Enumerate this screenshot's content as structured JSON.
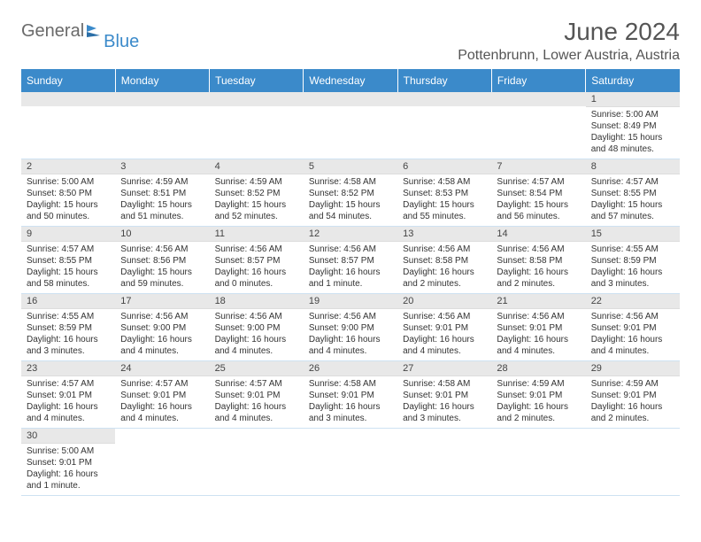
{
  "header": {
    "logo_general": "General",
    "logo_blue": "Blue",
    "month_title": "June 2024",
    "location": "Pottenbrunn, Lower Austria, Austria"
  },
  "colors": {
    "header_bg": "#3b8aca",
    "daynum_bg": "#e8e8e8",
    "text": "#333333",
    "logo_gray": "#6a6a6a"
  },
  "weekdays": [
    "Sunday",
    "Monday",
    "Tuesday",
    "Wednesday",
    "Thursday",
    "Friday",
    "Saturday"
  ],
  "grid": {
    "first_day_index": 6,
    "days_in_month": 30
  },
  "days": {
    "1": {
      "sunrise": "5:00 AM",
      "sunset": "8:49 PM",
      "daylight": "15 hours and 48 minutes."
    },
    "2": {
      "sunrise": "5:00 AM",
      "sunset": "8:50 PM",
      "daylight": "15 hours and 50 minutes."
    },
    "3": {
      "sunrise": "4:59 AM",
      "sunset": "8:51 PM",
      "daylight": "15 hours and 51 minutes."
    },
    "4": {
      "sunrise": "4:59 AM",
      "sunset": "8:52 PM",
      "daylight": "15 hours and 52 minutes."
    },
    "5": {
      "sunrise": "4:58 AM",
      "sunset": "8:52 PM",
      "daylight": "15 hours and 54 minutes."
    },
    "6": {
      "sunrise": "4:58 AM",
      "sunset": "8:53 PM",
      "daylight": "15 hours and 55 minutes."
    },
    "7": {
      "sunrise": "4:57 AM",
      "sunset": "8:54 PM",
      "daylight": "15 hours and 56 minutes."
    },
    "8": {
      "sunrise": "4:57 AM",
      "sunset": "8:55 PM",
      "daylight": "15 hours and 57 minutes."
    },
    "9": {
      "sunrise": "4:57 AM",
      "sunset": "8:55 PM",
      "daylight": "15 hours and 58 minutes."
    },
    "10": {
      "sunrise": "4:56 AM",
      "sunset": "8:56 PM",
      "daylight": "15 hours and 59 minutes."
    },
    "11": {
      "sunrise": "4:56 AM",
      "sunset": "8:57 PM",
      "daylight": "16 hours and 0 minutes."
    },
    "12": {
      "sunrise": "4:56 AM",
      "sunset": "8:57 PM",
      "daylight": "16 hours and 1 minute."
    },
    "13": {
      "sunrise": "4:56 AM",
      "sunset": "8:58 PM",
      "daylight": "16 hours and 2 minutes."
    },
    "14": {
      "sunrise": "4:56 AM",
      "sunset": "8:58 PM",
      "daylight": "16 hours and 2 minutes."
    },
    "15": {
      "sunrise": "4:55 AM",
      "sunset": "8:59 PM",
      "daylight": "16 hours and 3 minutes."
    },
    "16": {
      "sunrise": "4:55 AM",
      "sunset": "8:59 PM",
      "daylight": "16 hours and 3 minutes."
    },
    "17": {
      "sunrise": "4:56 AM",
      "sunset": "9:00 PM",
      "daylight": "16 hours and 4 minutes."
    },
    "18": {
      "sunrise": "4:56 AM",
      "sunset": "9:00 PM",
      "daylight": "16 hours and 4 minutes."
    },
    "19": {
      "sunrise": "4:56 AM",
      "sunset": "9:00 PM",
      "daylight": "16 hours and 4 minutes."
    },
    "20": {
      "sunrise": "4:56 AM",
      "sunset": "9:01 PM",
      "daylight": "16 hours and 4 minutes."
    },
    "21": {
      "sunrise": "4:56 AM",
      "sunset": "9:01 PM",
      "daylight": "16 hours and 4 minutes."
    },
    "22": {
      "sunrise": "4:56 AM",
      "sunset": "9:01 PM",
      "daylight": "16 hours and 4 minutes."
    },
    "23": {
      "sunrise": "4:57 AM",
      "sunset": "9:01 PM",
      "daylight": "16 hours and 4 minutes."
    },
    "24": {
      "sunrise": "4:57 AM",
      "sunset": "9:01 PM",
      "daylight": "16 hours and 4 minutes."
    },
    "25": {
      "sunrise": "4:57 AM",
      "sunset": "9:01 PM",
      "daylight": "16 hours and 4 minutes."
    },
    "26": {
      "sunrise": "4:58 AM",
      "sunset": "9:01 PM",
      "daylight": "16 hours and 3 minutes."
    },
    "27": {
      "sunrise": "4:58 AM",
      "sunset": "9:01 PM",
      "daylight": "16 hours and 3 minutes."
    },
    "28": {
      "sunrise": "4:59 AM",
      "sunset": "9:01 PM",
      "daylight": "16 hours and 2 minutes."
    },
    "29": {
      "sunrise": "4:59 AM",
      "sunset": "9:01 PM",
      "daylight": "16 hours and 2 minutes."
    },
    "30": {
      "sunrise": "5:00 AM",
      "sunset": "9:01 PM",
      "daylight": "16 hours and 1 minute."
    }
  },
  "labels": {
    "sunrise": "Sunrise:",
    "sunset": "Sunset:",
    "daylight": "Daylight:"
  }
}
